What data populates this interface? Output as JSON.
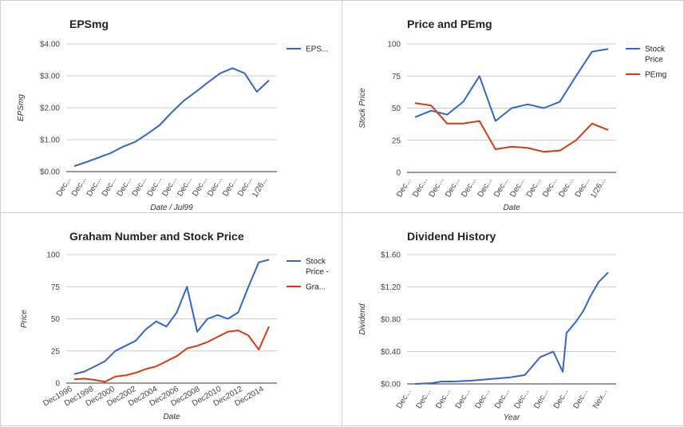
{
  "chart_data": [
    {
      "type": "line",
      "title": "EPSmg",
      "xlabel": "Date / Jul99",
      "ylabel": "EPSmg",
      "yticks": [
        "$0.00",
        "$1.00",
        "$2.00",
        "$3.00",
        "$4.00"
      ],
      "ylim": [
        0,
        4
      ],
      "x_ticks": [
        "Dec...",
        "Dec...",
        "Dec...",
        "Dec...",
        "Dec...",
        "Dec...",
        "Dec...",
        "Dec...",
        "Dec...",
        "Dec...",
        "Dec...",
        "Dec...",
        "Dec...",
        "1/26..."
      ],
      "series": [
        {
          "name": "EPS...",
          "color": "#3366cc",
          "values": [
            0.17,
            0.3,
            0.44,
            0.58,
            0.78,
            0.93,
            1.18,
            1.45,
            1.85,
            2.22,
            2.5,
            2.8,
            3.08,
            3.24,
            3.08,
            2.5,
            2.86
          ]
        }
      ],
      "legend_position": "right"
    },
    {
      "type": "line",
      "title": "Price and PEmg",
      "xlabel": "Date",
      "ylabel": "Stock Price",
      "yticks": [
        "0",
        "25",
        "50",
        "75",
        "100"
      ],
      "ylim": [
        0,
        100
      ],
      "x_ticks": [
        "Dec...",
        "Dec...",
        "Dec...",
        "Dec...",
        "Dec...",
        "Dec...",
        "Dec...",
        "Dec...",
        "Dec...",
        "Dec...",
        "Dec...",
        "Dec...",
        "1/26..."
      ],
      "series": [
        {
          "name": "Stock Price",
          "color": "#3366cc",
          "values": [
            43,
            48,
            45,
            55,
            75,
            40,
            50,
            53,
            50,
            55,
            75,
            94,
            96
          ]
        },
        {
          "name": "PEmg",
          "color": "#dc3912",
          "values": [
            54,
            52,
            38,
            38,
            40,
            18,
            20,
            19,
            16,
            17,
            25,
            38,
            33
          ]
        }
      ],
      "legend_position": "right"
    },
    {
      "type": "line",
      "title": "Graham Number and Stock Price",
      "xlabel": "Date",
      "ylabel": "Price",
      "yticks": [
        "0",
        "25",
        "50",
        "75",
        "100"
      ],
      "ylim": [
        0,
        100
      ],
      "x_ticks": [
        "Dec1996",
        "Dec1998",
        "Dec2000",
        "Dec2002",
        "Dec2004",
        "Dec2006",
        "Dec2008",
        "Dec2010",
        "Dec2012",
        "Dec2014"
      ],
      "series": [
        {
          "name": "Stock Price -",
          "color": "#3366cc",
          "values": [
            7,
            9,
            13,
            17,
            25,
            29,
            33,
            42,
            48,
            44,
            55,
            75,
            40,
            50,
            53,
            50,
            55,
            75,
            94,
            96
          ]
        },
        {
          "name": "Gra...",
          "color": "#dc3912",
          "values": [
            3,
            3.5,
            2.5,
            1,
            5,
            6,
            8,
            11,
            13,
            17,
            21,
            27,
            29,
            32,
            36,
            40,
            41,
            37,
            26,
            44
          ]
        }
      ],
      "legend_position": "right"
    },
    {
      "type": "line",
      "title": "Dividend History",
      "xlabel": "Year",
      "ylabel": "Dividend",
      "yticks": [
        "$0.00",
        "$0.40",
        "$0.80",
        "$1.20",
        "$1.60"
      ],
      "ylim": [
        0,
        1.6
      ],
      "x_ticks": [
        "Dec...",
        "Dec...",
        "Dec...",
        "Dec...",
        "Dec...",
        "Dec...",
        "Dec...",
        "Dec...",
        "Dec...",
        "Dec...",
        "Nex..."
      ],
      "series": [
        {
          "name": "",
          "color": "#3366cc",
          "x": [
            0,
            0.9,
            1.4,
            2,
            3,
            4,
            5,
            5.8,
            6.6,
            7.3,
            7.8,
            8,
            8.5,
            8.9,
            9.3,
            9.7,
            10.2
          ],
          "values": [
            0,
            0.01,
            0.03,
            0.03,
            0.04,
            0.06,
            0.08,
            0.11,
            0.33,
            0.4,
            0.15,
            0.63,
            0.77,
            0.91,
            1.1,
            1.26,
            1.38
          ]
        }
      ],
      "legend_position": "none"
    }
  ]
}
